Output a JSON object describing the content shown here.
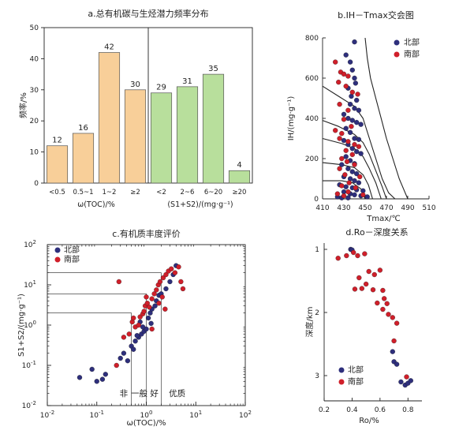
{
  "colors": {
    "orange": "#f8cf99",
    "green": "#b8df9c",
    "north": "#2e2f7c",
    "south": "#d01f2a"
  },
  "chart_data": [
    {
      "id": "a",
      "type": "bar",
      "title": "a.总有机碳与生烃潜力频率分布",
      "ylabel": "频率/%",
      "ylim": [
        0,
        50
      ],
      "yticks": [
        "0",
        "10",
        "20",
        "30",
        "40",
        "50"
      ],
      "groups": [
        {
          "xlabel": "ω(TOC)/%",
          "categories": [
            "<0.5",
            "0.5~1",
            "1~2",
            "≥2"
          ],
          "values": [
            12,
            16,
            42,
            30
          ],
          "value_labels": [
            "12",
            "16",
            "42",
            "30"
          ]
        },
        {
          "xlabel": "(S1+S2)/(mg·g⁻¹)",
          "categories": [
            "<2",
            "2~6",
            "6~20",
            "≥20"
          ],
          "values": [
            29,
            31,
            35,
            4
          ],
          "value_labels": [
            "29",
            "31",
            "35",
            "4"
          ]
        }
      ]
    },
    {
      "id": "b",
      "type": "scatter",
      "title": "b.IH－Tmax交会图",
      "xlabel": "Tmax/℃",
      "ylabel": "IH/(mg·g⁻¹)",
      "xlim": [
        410,
        510
      ],
      "ylim": [
        0,
        800
      ],
      "xticks": [
        "410",
        "430",
        "450",
        "470",
        "490",
        "510"
      ],
      "yticks": [
        "0",
        "200",
        "400",
        "600",
        "800"
      ],
      "legend": [
        "北部",
        "南部"
      ],
      "series": [
        {
          "name": "北部",
          "points": [
            [
              440,
              780
            ],
            [
              432,
              715
            ],
            [
              436,
              680
            ],
            [
              438,
              640
            ],
            [
              440,
              600
            ],
            [
              441,
              575
            ],
            [
              434,
              550
            ],
            [
              437,
              510
            ],
            [
              442,
              490
            ],
            [
              436,
              470
            ],
            [
              440,
              450
            ],
            [
              444,
              440
            ],
            [
              430,
              420
            ],
            [
              434,
              400
            ],
            [
              438,
              390
            ],
            [
              442,
              380
            ],
            [
              446,
              370
            ],
            [
              432,
              350
            ],
            [
              436,
              330
            ],
            [
              440,
              300
            ],
            [
              444,
              295
            ],
            [
              430,
              290
            ],
            [
              434,
              270
            ],
            [
              438,
              250
            ],
            [
              442,
              235
            ],
            [
              446,
              225
            ],
            [
              432,
              210
            ],
            [
              436,
              190
            ],
            [
              440,
              175
            ],
            [
              428,
              170
            ],
            [
              434,
              150
            ],
            [
              438,
              135
            ],
            [
              442,
              125
            ],
            [
              430,
              110
            ],
            [
              436,
              100
            ],
            [
              440,
              90
            ],
            [
              444,
              80
            ],
            [
              426,
              70
            ],
            [
              432,
              60
            ],
            [
              438,
              55
            ],
            [
              442,
              45
            ],
            [
              448,
              40
            ],
            [
              430,
              35
            ],
            [
              436,
              25
            ],
            [
              440,
              20
            ],
            [
              446,
              15
            ],
            [
              424,
              10
            ],
            [
              428,
              5
            ],
            [
              434,
              5
            ],
            [
              452,
              10
            ]
          ]
        },
        {
          "name": "南部",
          "points": [
            [
              422,
              680
            ],
            [
              427,
              630
            ],
            [
              430,
              620
            ],
            [
              434,
              610
            ],
            [
              425,
              580
            ],
            [
              432,
              560
            ],
            [
              438,
              530
            ],
            [
              443,
              520
            ],
            [
              426,
              470
            ],
            [
              434,
              440
            ],
            [
              430,
              395
            ],
            [
              437,
              360
            ],
            [
              422,
              340
            ],
            [
              428,
              325
            ],
            [
              426,
              300
            ],
            [
              434,
              285
            ],
            [
              440,
              270
            ],
            [
              444,
              260
            ],
            [
              432,
              240
            ],
            [
              438,
              220
            ],
            [
              428,
              200
            ],
            [
              433,
              185
            ],
            [
              440,
              170
            ],
            [
              426,
              150
            ],
            [
              431,
              120
            ],
            [
              445,
              110
            ],
            [
              435,
              80
            ],
            [
              428,
              65
            ],
            [
              441,
              55
            ],
            [
              434,
              35
            ],
            [
              424,
              25
            ],
            [
              448,
              20
            ],
            [
              430,
              15
            ]
          ]
        }
      ]
    },
    {
      "id": "c",
      "type": "scatter",
      "title": "c.有机质丰度评价",
      "xlabel": "ω(TOC)/%",
      "ylabel": "S1+S2/(mg·g⁻¹)",
      "scale": "log",
      "xlim": [
        0.01,
        100
      ],
      "ylim": [
        0.01,
        100
      ],
      "x_tick_exponents": [
        "-2",
        "-1",
        "0",
        "1",
        "2"
      ],
      "y_tick_exponents": [
        "-2",
        "-1",
        "0",
        "1",
        "2"
      ],
      "legend": [
        "北部",
        "南部"
      ],
      "grade_labels": [
        "非",
        "一般",
        "好",
        "优质"
      ],
      "series": [
        {
          "name": "北部",
          "points": [
            [
              0.045,
              0.05
            ],
            [
              0.08,
              0.08
            ],
            [
              0.1,
              0.04
            ],
            [
              0.13,
              0.045
            ],
            [
              0.15,
              0.06
            ],
            [
              0.3,
              0.15
            ],
            [
              0.35,
              0.2
            ],
            [
              0.42,
              0.13
            ],
            [
              0.5,
              0.3
            ],
            [
              0.55,
              0.25
            ],
            [
              0.6,
              0.4
            ],
            [
              0.7,
              0.5
            ],
            [
              0.8,
              0.6
            ],
            [
              0.9,
              0.7
            ],
            [
              1.0,
              0.8
            ],
            [
              1.1,
              1.5
            ],
            [
              1.2,
              2.0
            ],
            [
              1.3,
              2.5
            ],
            [
              1.5,
              3.0
            ],
            [
              1.6,
              4.0
            ],
            [
              1.8,
              5.5
            ],
            [
              2.0,
              6.0
            ],
            [
              2.5,
              8.0
            ],
            [
              3.0,
              12.0
            ],
            [
              3.5,
              18.0
            ],
            [
              4.0,
              30.0
            ],
            [
              0.65,
              0.55
            ],
            [
              0.75,
              1.2
            ],
            [
              0.85,
              0.9
            ],
            [
              1.25,
              1.1
            ]
          ]
        },
        {
          "name": "南部",
          "points": [
            [
              0.25,
              0.1
            ],
            [
              0.28,
              12.0
            ],
            [
              0.35,
              0.5
            ],
            [
              0.45,
              0.6
            ],
            [
              0.52,
              1.2
            ],
            [
              0.6,
              0.9
            ],
            [
              0.7,
              1.0
            ],
            [
              0.75,
              1.6
            ],
            [
              0.85,
              1.9
            ],
            [
              0.95,
              3.0
            ],
            [
              1.05,
              3.5
            ],
            [
              1.15,
              2.8
            ],
            [
              1.3,
              4.5
            ],
            [
              1.45,
              6.0
            ],
            [
              1.6,
              7.5
            ],
            [
              1.75,
              10.0
            ],
            [
              1.9,
              12.0
            ],
            [
              2.2,
              15.0
            ],
            [
              2.5,
              18.0
            ],
            [
              2.8,
              22.0
            ],
            [
              3.2,
              25.0
            ],
            [
              3.8,
              20.0
            ],
            [
              4.5,
              28.0
            ],
            [
              5.0,
              12.0
            ],
            [
              5.5,
              8.0
            ],
            [
              2.1,
              5.0
            ],
            [
              2.4,
              2.5
            ],
            [
              1.8,
              3.5
            ],
            [
              1.0,
              5.0
            ],
            [
              0.9,
              2.2
            ],
            [
              0.55,
              1.5
            ],
            [
              1.3,
              0.8
            ]
          ]
        }
      ]
    },
    {
      "id": "d",
      "type": "scatter",
      "title": "d.Ro－深度关系",
      "xlabel": "Ro/%",
      "ylabel": "深度/km",
      "xlim": [
        0.2,
        0.9
      ],
      "ylim": [
        3.4,
        0.9
      ],
      "xticks": [
        "0.2",
        "0.4",
        "0.6",
        "0.8"
      ],
      "yticks": [
        "1",
        "2",
        "3"
      ],
      "legend": [
        "北部",
        "南部"
      ],
      "series": [
        {
          "name": "北部",
          "points": [
            [
              0.39,
              1.0
            ],
            [
              0.4,
              1.01
            ],
            [
              0.69,
              2.62
            ],
            [
              0.7,
              2.78
            ],
            [
              0.72,
              2.82
            ],
            [
              0.75,
              3.1
            ],
            [
              0.78,
              3.15
            ],
            [
              0.8,
              3.12
            ],
            [
              0.82,
              3.08
            ]
          ]
        },
        {
          "name": "南部",
          "points": [
            [
              0.3,
              1.14
            ],
            [
              0.36,
              1.1
            ],
            [
              0.41,
              1.05
            ],
            [
              0.44,
              1.1
            ],
            [
              0.49,
              1.07
            ],
            [
              0.52,
              1.35
            ],
            [
              0.56,
              1.4
            ],
            [
              0.6,
              1.33
            ],
            [
              0.45,
              1.45
            ],
            [
              0.5,
              1.55
            ],
            [
              0.42,
              1.63
            ],
            [
              0.47,
              1.62
            ],
            [
              0.55,
              1.64
            ],
            [
              0.62,
              1.65
            ],
            [
              0.63,
              1.78
            ],
            [
              0.58,
              1.85
            ],
            [
              0.65,
              1.86
            ],
            [
              0.62,
              1.95
            ],
            [
              0.66,
              2.03
            ],
            [
              0.69,
              2.08
            ],
            [
              0.72,
              2.17
            ],
            [
              0.7,
              2.45
            ],
            [
              0.79,
              3.02
            ]
          ]
        }
      ]
    }
  ]
}
